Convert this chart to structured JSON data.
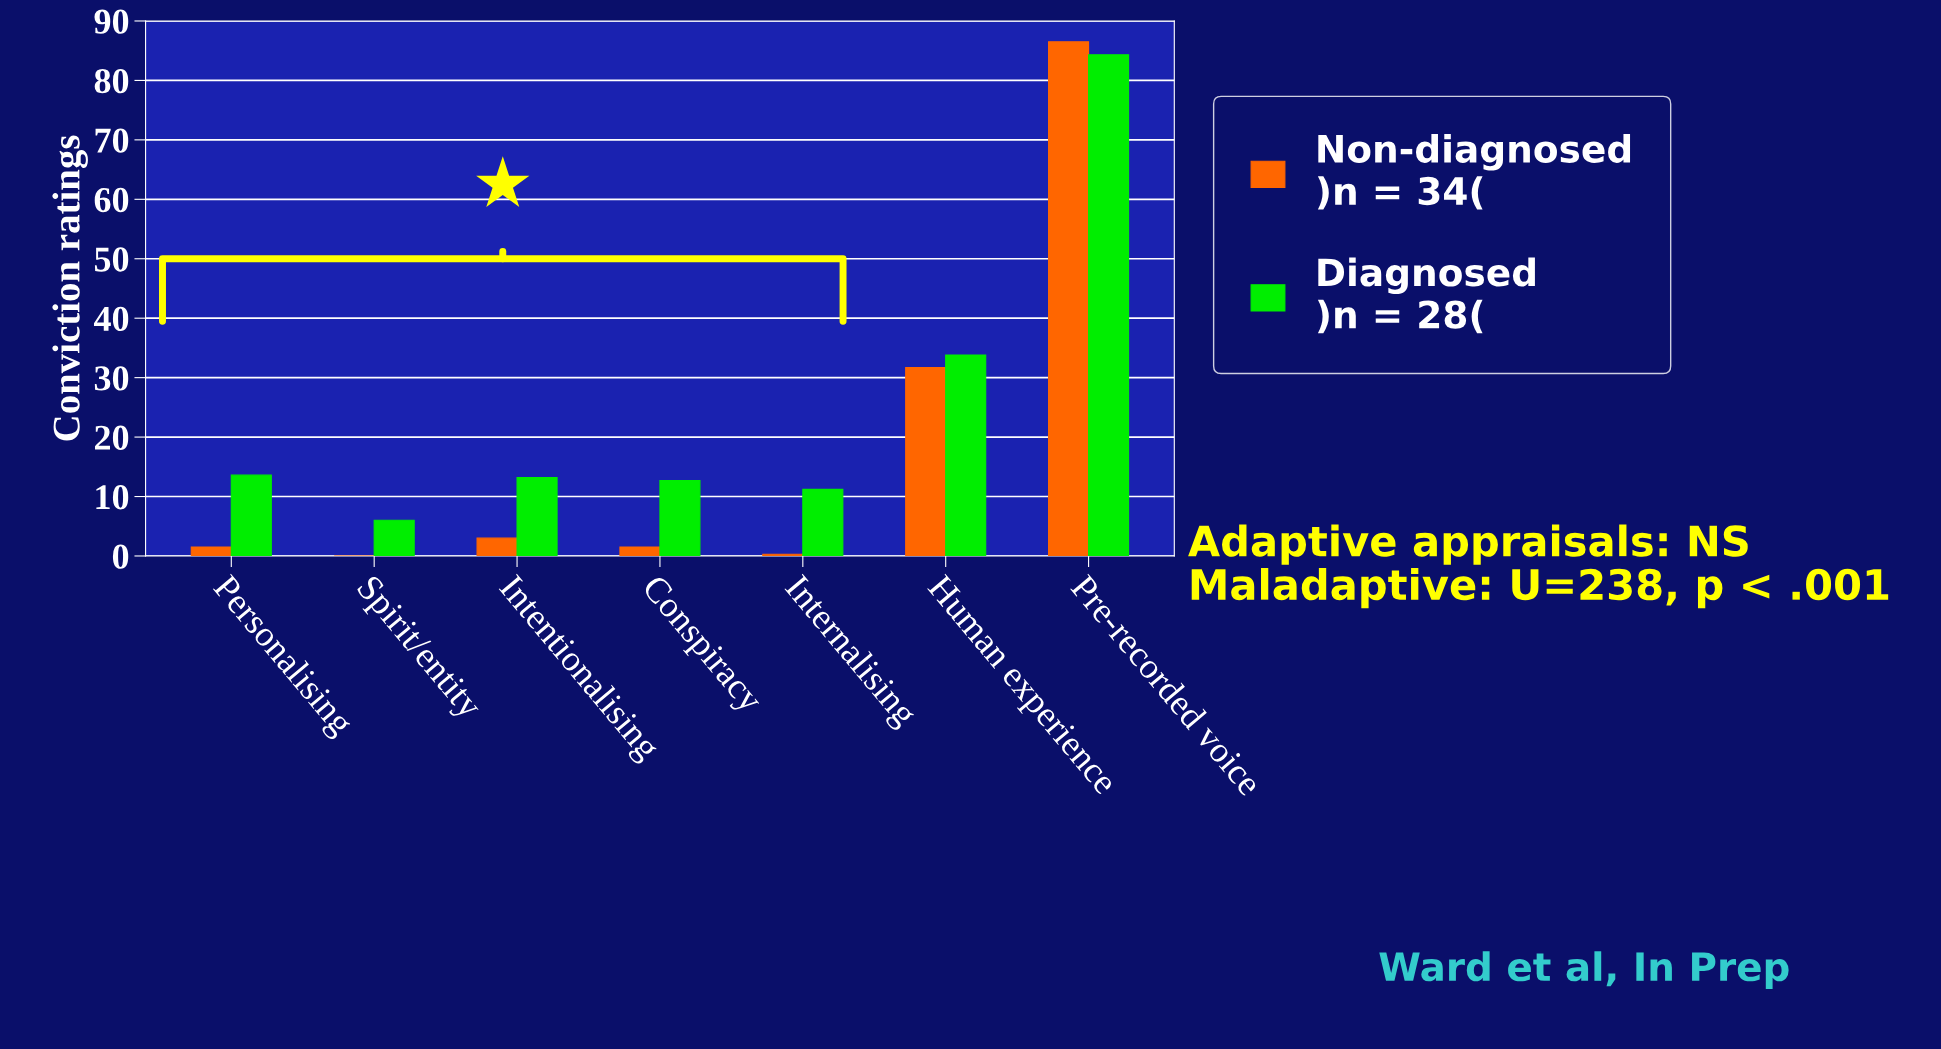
{
  "chart_data": {
    "type": "bar",
    "ylabel": "Conviction ratings",
    "categories": [
      "Personalising",
      "Spirit/entity",
      "Intentionalising",
      "Conspiracy",
      "Internalising",
      "Human experience",
      "Pre-recorded voice"
    ],
    "series": [
      {
        "name": "Non-diagnosed\n)n = 34(",
        "color": "#ff6600",
        "values": [
          1.5,
          0,
          3,
          1.5,
          0.3,
          31.7,
          86.5
        ]
      },
      {
        "name": "Diagnosed\n)n = 28(",
        "color": "#00ee00",
        "values": [
          13.6,
          6,
          13.2,
          12.7,
          11.2,
          33.8,
          84.3
        ]
      }
    ],
    "ylim": [
      0,
      90
    ],
    "yticks": [
      0,
      10,
      20,
      30,
      40,
      50,
      60,
      70,
      80,
      90
    ],
    "grid": "y",
    "legend": "right",
    "annotations": [
      "★",
      "Adaptive appraisals: NS\nMaladaptive: U=238, p < .001",
      "Ward et al, In Prep"
    ]
  }
}
